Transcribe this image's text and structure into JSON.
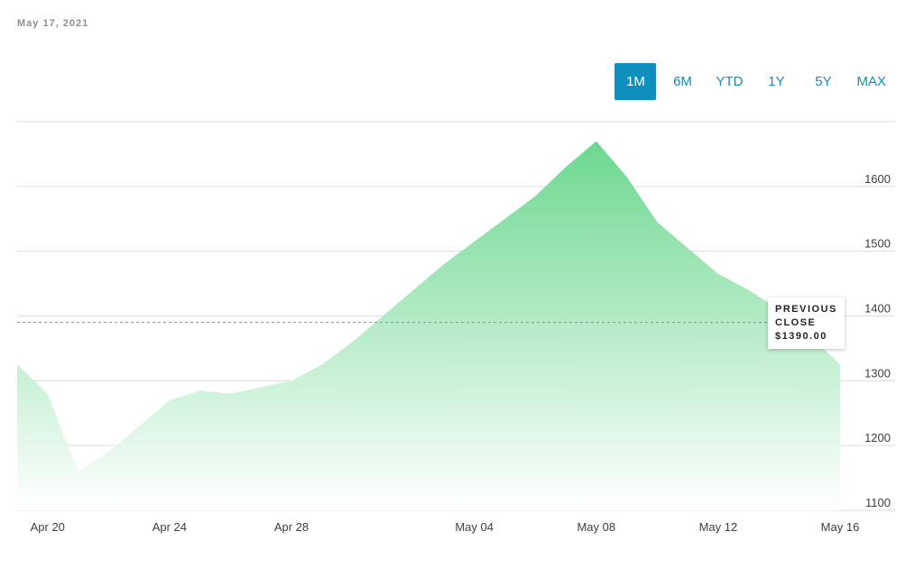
{
  "header": {
    "date": "May 17, 2021"
  },
  "range_tabs": [
    {
      "label": "1M",
      "active": true
    },
    {
      "label": "6M",
      "active": false
    },
    {
      "label": "YTD",
      "active": false
    },
    {
      "label": "1Y",
      "active": false
    },
    {
      "label": "5Y",
      "active": false
    },
    {
      "label": "MAX",
      "active": false
    }
  ],
  "previous_close": {
    "line1": "PREVIOUS",
    "line2": "CLOSE",
    "value_label": "$1390.00",
    "value": 1390
  },
  "colors": {
    "accent": "#0e8fbd",
    "area_top": "#6dd890",
    "area_bottom": "#ffffff",
    "grid": "#dcdcdc"
  },
  "chart_data": {
    "type": "area",
    "x": [
      "2021-04-19",
      "2021-04-20",
      "2021-04-21",
      "2021-04-22",
      "2021-04-23",
      "2021-04-24",
      "2021-04-25",
      "2021-04-26",
      "2021-04-27",
      "2021-04-28",
      "2021-04-29",
      "2021-04-30",
      "2021-05-01",
      "2021-05-02",
      "2021-05-03",
      "2021-05-04",
      "2021-05-05",
      "2021-05-06",
      "2021-05-07",
      "2021-05-08",
      "2021-05-09",
      "2021-05-10",
      "2021-05-11",
      "2021-05-12",
      "2021-05-13",
      "2021-05-14",
      "2021-05-15",
      "2021-05-16"
    ],
    "values": [
      1325,
      1280,
      1160,
      1190,
      1230,
      1270,
      1285,
      1280,
      1290,
      1300,
      1325,
      1360,
      1400,
      1440,
      1480,
      1515,
      1550,
      1585,
      1630,
      1670,
      1615,
      1545,
      1505,
      1465,
      1440,
      1410,
      1370,
      1325
    ],
    "x_ticks": [
      {
        "date": "2021-04-20",
        "label": "Apr 20"
      },
      {
        "date": "2021-04-24",
        "label": "Apr 24"
      },
      {
        "date": "2021-04-28",
        "label": "Apr 28"
      },
      {
        "date": "2021-05-04",
        "label": "May 04"
      },
      {
        "date": "2021-05-08",
        "label": "May 08"
      },
      {
        "date": "2021-05-12",
        "label": "May 12"
      },
      {
        "date": "2021-05-16",
        "label": "May 16"
      }
    ],
    "y_ticks": [
      1100,
      1200,
      1300,
      1400,
      1500,
      1600
    ],
    "ylim": [
      1100,
      1700
    ],
    "grid": true,
    "y_axis_position": "right",
    "reference_line": {
      "value": 1390,
      "style": "dashed"
    }
  }
}
